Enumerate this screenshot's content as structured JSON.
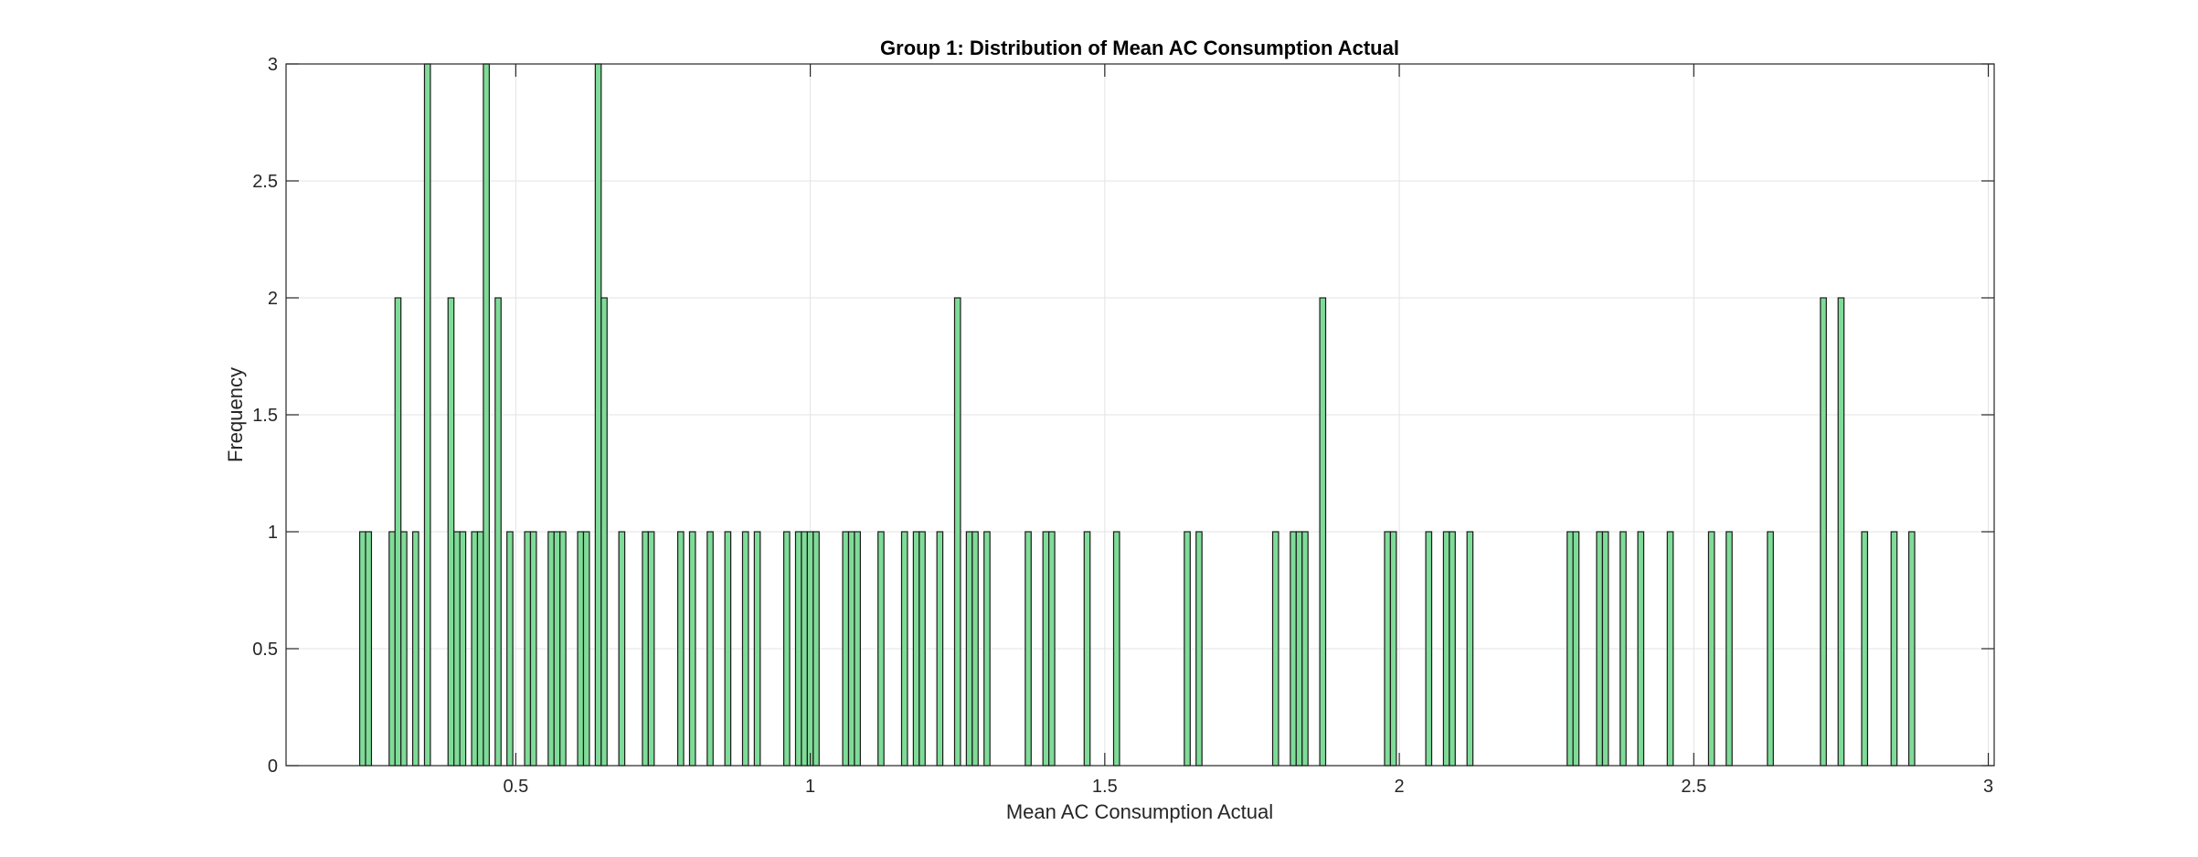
{
  "chart_data": {
    "type": "bar",
    "title": "Group 1: Distribution of Mean AC Consumption Actual",
    "xlabel": "Mean AC Consumption Actual",
    "ylabel": "Frequency",
    "xlim": [
      0.11,
      3.01
    ],
    "ylim": [
      0,
      3
    ],
    "xticks": [
      0.5,
      1,
      1.5,
      2,
      2.5,
      3
    ],
    "yticks": [
      0,
      0.5,
      1,
      1.5,
      2,
      2.5,
      3
    ],
    "xtick_labels": [
      "0.5",
      "1",
      "1.5",
      "2",
      "2.5",
      "3"
    ],
    "ytick_labels": [
      "0",
      "0.5",
      "1",
      "1.5",
      "2",
      "2.5",
      "3"
    ],
    "grid": true,
    "bin_width": 0.01,
    "bar_color": "#7fdc98",
    "edge_color": "#1a1a1a",
    "bins": [
      {
        "x": 0.24,
        "count": 1
      },
      {
        "x": 0.25,
        "count": 1
      },
      {
        "x": 0.29,
        "count": 1
      },
      {
        "x": 0.3,
        "count": 2
      },
      {
        "x": 0.31,
        "count": 1
      },
      {
        "x": 0.33,
        "count": 1
      },
      {
        "x": 0.35,
        "count": 3
      },
      {
        "x": 0.39,
        "count": 2
      },
      {
        "x": 0.4,
        "count": 1
      },
      {
        "x": 0.41,
        "count": 1
      },
      {
        "x": 0.43,
        "count": 1
      },
      {
        "x": 0.44,
        "count": 1
      },
      {
        "x": 0.45,
        "count": 3
      },
      {
        "x": 0.47,
        "count": 2
      },
      {
        "x": 0.49,
        "count": 1
      },
      {
        "x": 0.52,
        "count": 1
      },
      {
        "x": 0.53,
        "count": 1
      },
      {
        "x": 0.56,
        "count": 1
      },
      {
        "x": 0.57,
        "count": 1
      },
      {
        "x": 0.58,
        "count": 1
      },
      {
        "x": 0.61,
        "count": 1
      },
      {
        "x": 0.62,
        "count": 1
      },
      {
        "x": 0.64,
        "count": 3
      },
      {
        "x": 0.65,
        "count": 2
      },
      {
        "x": 0.68,
        "count": 1
      },
      {
        "x": 0.72,
        "count": 1
      },
      {
        "x": 0.73,
        "count": 1
      },
      {
        "x": 0.78,
        "count": 1
      },
      {
        "x": 0.8,
        "count": 1
      },
      {
        "x": 0.83,
        "count": 1
      },
      {
        "x": 0.86,
        "count": 1
      },
      {
        "x": 0.89,
        "count": 1
      },
      {
        "x": 0.91,
        "count": 1
      },
      {
        "x": 0.96,
        "count": 1
      },
      {
        "x": 0.98,
        "count": 1
      },
      {
        "x": 0.99,
        "count": 1
      },
      {
        "x": 1.0,
        "count": 1
      },
      {
        "x": 1.01,
        "count": 1
      },
      {
        "x": 1.06,
        "count": 1
      },
      {
        "x": 1.07,
        "count": 1
      },
      {
        "x": 1.08,
        "count": 1
      },
      {
        "x": 1.12,
        "count": 1
      },
      {
        "x": 1.16,
        "count": 1
      },
      {
        "x": 1.18,
        "count": 1
      },
      {
        "x": 1.19,
        "count": 1
      },
      {
        "x": 1.22,
        "count": 1
      },
      {
        "x": 1.25,
        "count": 2
      },
      {
        "x": 1.27,
        "count": 1
      },
      {
        "x": 1.28,
        "count": 1
      },
      {
        "x": 1.3,
        "count": 1
      },
      {
        "x": 1.37,
        "count": 1
      },
      {
        "x": 1.4,
        "count": 1
      },
      {
        "x": 1.41,
        "count": 1
      },
      {
        "x": 1.47,
        "count": 1
      },
      {
        "x": 1.52,
        "count": 1
      },
      {
        "x": 1.64,
        "count": 1
      },
      {
        "x": 1.66,
        "count": 1
      },
      {
        "x": 1.79,
        "count": 1
      },
      {
        "x": 1.82,
        "count": 1
      },
      {
        "x": 1.83,
        "count": 1
      },
      {
        "x": 1.84,
        "count": 1
      },
      {
        "x": 1.87,
        "count": 2
      },
      {
        "x": 1.98,
        "count": 1
      },
      {
        "x": 1.99,
        "count": 1
      },
      {
        "x": 2.05,
        "count": 1
      },
      {
        "x": 2.08,
        "count": 1
      },
      {
        "x": 2.09,
        "count": 1
      },
      {
        "x": 2.12,
        "count": 1
      },
      {
        "x": 2.29,
        "count": 1
      },
      {
        "x": 2.3,
        "count": 1
      },
      {
        "x": 2.34,
        "count": 1
      },
      {
        "x": 2.35,
        "count": 1
      },
      {
        "x": 2.38,
        "count": 1
      },
      {
        "x": 2.41,
        "count": 1
      },
      {
        "x": 2.46,
        "count": 1
      },
      {
        "x": 2.53,
        "count": 1
      },
      {
        "x": 2.56,
        "count": 1
      },
      {
        "x": 2.63,
        "count": 1
      },
      {
        "x": 2.72,
        "count": 2
      },
      {
        "x": 2.75,
        "count": 2
      },
      {
        "x": 2.79,
        "count": 1
      },
      {
        "x": 2.84,
        "count": 1
      },
      {
        "x": 2.87,
        "count": 1
      }
    ]
  }
}
